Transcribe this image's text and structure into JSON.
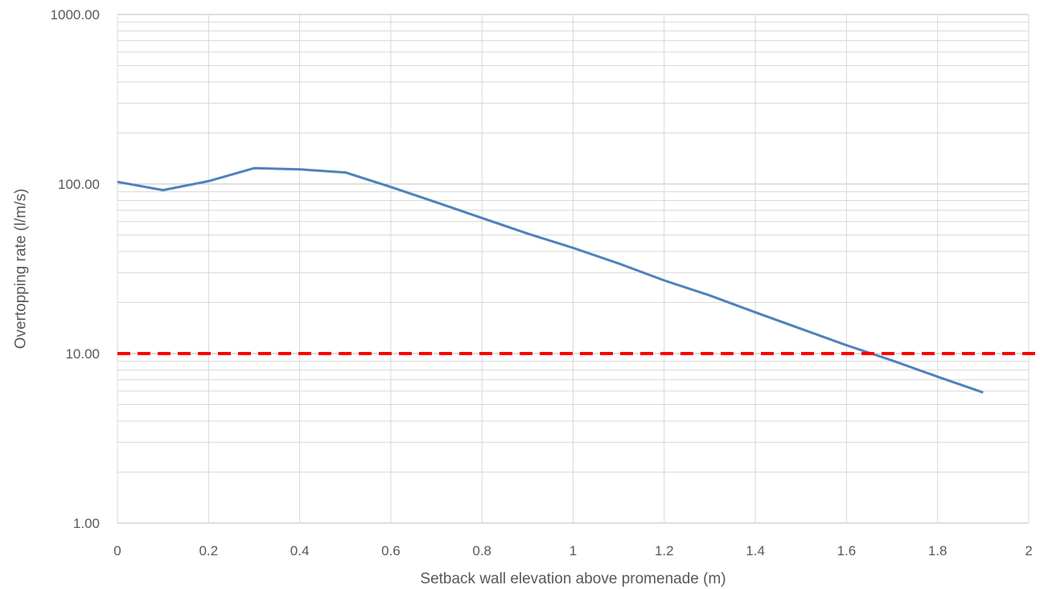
{
  "chart_data": {
    "type": "line",
    "title": "",
    "xlabel": "Setback wall elevation above promenade (m)",
    "ylabel": "Overtopping rate (l/m/s)",
    "x_scale": "linear",
    "y_scale": "log",
    "xlim": [
      0,
      2
    ],
    "ylim": [
      1,
      1000
    ],
    "x_ticks": [
      0,
      0.2,
      0.4,
      0.6,
      0.8,
      1,
      1.2,
      1.4,
      1.6,
      1.8,
      2
    ],
    "x_tick_labels": [
      "0",
      "0.2",
      "0.4",
      "0.6",
      "0.8",
      "1",
      "1.2",
      "1.4",
      "1.6",
      "1.8",
      "2"
    ],
    "y_ticks": [
      1,
      10,
      100,
      1000
    ],
    "y_tick_labels": [
      "1.00",
      "10.00",
      "100.00",
      "1000.00"
    ],
    "grid": true,
    "legend": "none",
    "series": [
      {
        "color": "#4f81bd",
        "style": "solid",
        "x": [
          0,
          0.1,
          0.2,
          0.3,
          0.4,
          0.5,
          0.6,
          0.7,
          0.8,
          0.9,
          1.0,
          1.1,
          1.2,
          1.3,
          1.4,
          1.5,
          1.6,
          1.7,
          1.8,
          1.9
        ],
        "y": [
          103,
          92,
          104,
          124,
          122,
          117,
          96,
          78,
          63,
          51,
          42,
          34,
          27,
          22,
          17.5,
          14,
          11.2,
          9.1,
          7.3,
          5.9
        ]
      },
      {
        "color": "#ff0000",
        "style": "dashed",
        "x": [
          0,
          2.02
        ],
        "y": [
          10,
          10
        ]
      }
    ]
  }
}
